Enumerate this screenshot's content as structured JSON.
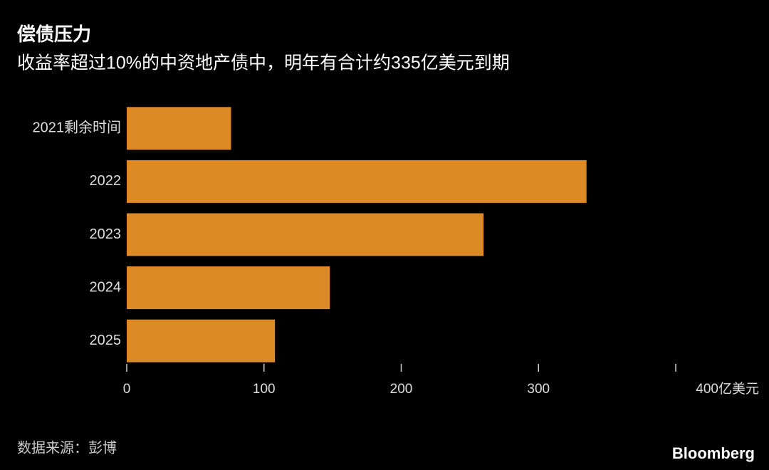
{
  "chart_data": {
    "type": "bar",
    "orientation": "horizontal",
    "title": "偿债压力",
    "subtitle": "收益率超过10%的中资地产债中，明年有合计约335亿美元到期",
    "categories": [
      "2021剩余时间",
      "2022",
      "2023",
      "2024",
      "2025"
    ],
    "values": [
      76,
      335,
      260,
      148,
      108
    ],
    "color": "#dc8a25",
    "xlim": [
      0,
      400
    ],
    "xticks": [
      0,
      100,
      200,
      300,
      {
        "value": 400,
        "label": "400亿美元"
      }
    ],
    "source": "数据来源：彭博",
    "logo": "Bloomberg"
  }
}
